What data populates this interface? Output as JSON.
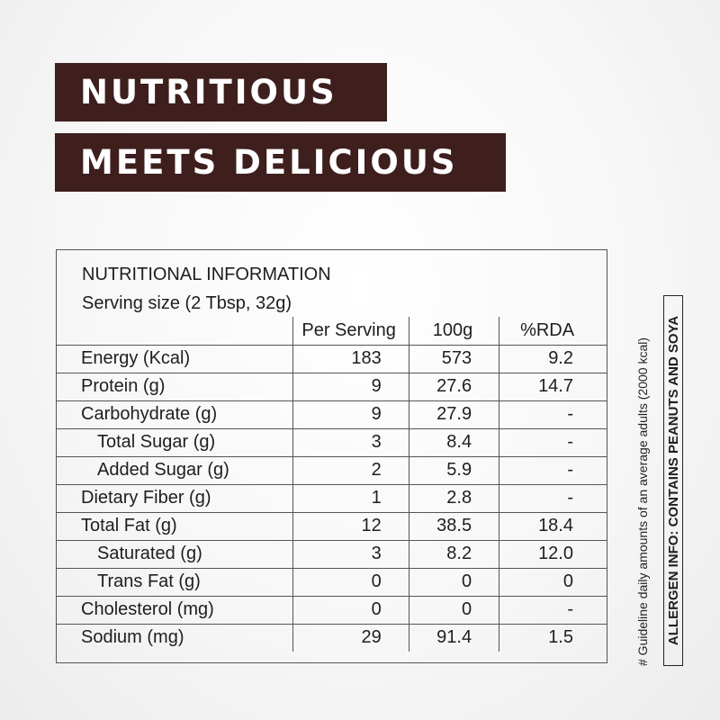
{
  "headline": {
    "line1": "NUTRITIOUS",
    "line2": "MEETS DELICIOUS"
  },
  "colors": {
    "banner_bg": "#3e1f1e",
    "banner_text": "#ffffff",
    "border": "#555555"
  },
  "panel": {
    "title": "NUTRITIONAL INFORMATION",
    "serving_size": "Serving size (2 Tbsp, 32g)",
    "columns": [
      "",
      "Per Serving",
      "100g",
      "%RDA"
    ],
    "rows": [
      {
        "label": "Energy (Kcal)",
        "per_serving": "183",
        "per_100g": "573",
        "rda": "9.2",
        "indent": false
      },
      {
        "label": "Protein (g)",
        "per_serving": "9",
        "per_100g": "27.6",
        "rda": "14.7",
        "indent": false
      },
      {
        "label": "Carbohydrate (g)",
        "per_serving": "9",
        "per_100g": "27.9",
        "rda": "-",
        "indent": false
      },
      {
        "label": "Total Sugar (g)",
        "per_serving": "3",
        "per_100g": "8.4",
        "rda": "-",
        "indent": true
      },
      {
        "label": "Added Sugar (g)",
        "per_serving": "2",
        "per_100g": "5.9",
        "rda": "-",
        "indent": true
      },
      {
        "label": "Dietary Fiber (g)",
        "per_serving": "1",
        "per_100g": "2.8",
        "rda": "-",
        "indent": false
      },
      {
        "label": "Total Fat (g)",
        "per_serving": "12",
        "per_100g": "38.5",
        "rda": "18.4",
        "indent": false
      },
      {
        "label": "Saturated (g)",
        "per_serving": "3",
        "per_100g": "8.2",
        "rda": "12.0",
        "indent": true
      },
      {
        "label": "Trans Fat (g)",
        "per_serving": "0",
        "per_100g": "0",
        "rda": "0",
        "indent": true
      },
      {
        "label": "Cholesterol (mg)",
        "per_serving": "0",
        "per_100g": "0",
        "rda": "-",
        "indent": false
      },
      {
        "label": "Sodium (mg)",
        "per_serving": "29",
        "per_100g": "91.4",
        "rda": "1.5",
        "indent": false
      }
    ]
  },
  "footnote": "# Guideline daily amounts of an average adults (2000 kcal)",
  "allergen": "ALLERGEN INFO: CONTAINS PEANUTS AND SOYA"
}
